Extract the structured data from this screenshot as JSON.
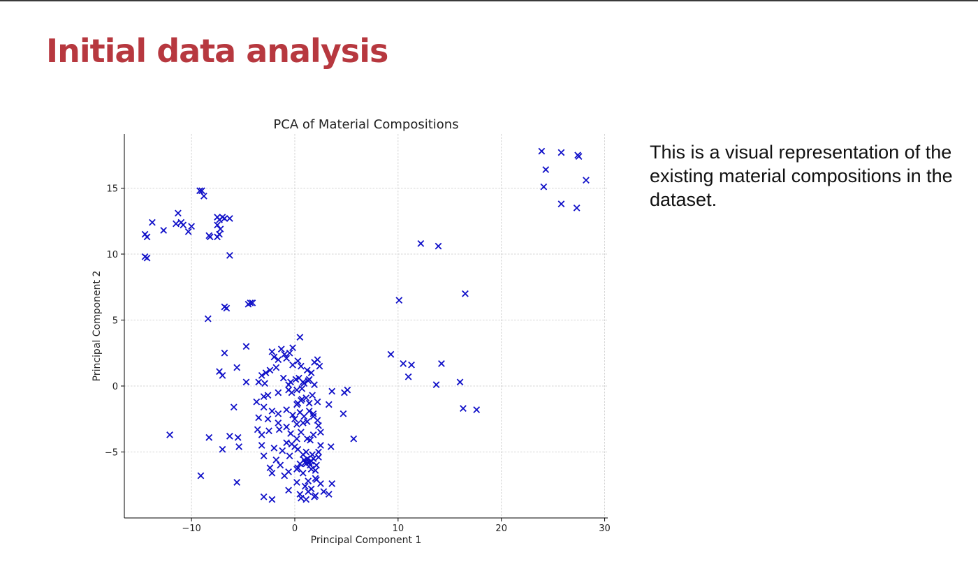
{
  "slide": {
    "title": "Initial data analysis",
    "description": "This is a visual representation of the existing material compositions in the dataset.",
    "title_color": "#b7383f"
  },
  "chart_data": {
    "type": "scatter",
    "title": "PCA of Material Compositions",
    "xlabel": "Principal Component 1",
    "ylabel": "Principal Component 2",
    "xlim": [
      -16.5,
      30.3
    ],
    "ylim": [
      -10.0,
      19.1
    ],
    "xticks": [
      -10,
      0,
      10,
      20,
      30
    ],
    "yticks": [
      -5,
      0,
      5,
      10,
      15
    ],
    "xtick_labels": [
      "−10",
      "0",
      "10",
      "20",
      "30"
    ],
    "ytick_labels": [
      "−5",
      "0",
      "5",
      "10",
      "15"
    ],
    "grid": true,
    "marker": "x",
    "color": "#1010c8",
    "series": [
      {
        "x": [
          -9.2,
          -9.0,
          -8.8,
          -11.3,
          -11.0,
          -10.8,
          -10.3,
          -10.0,
          -11.5,
          -12.7,
          -13.8,
          -14.3,
          -14.5,
          -14.5,
          -14.3,
          -7.5,
          -7.3,
          -7.0,
          -6.8,
          -6.3,
          -7.5,
          -7.2,
          -8.3,
          -8.2,
          -7.5,
          -7.3,
          -6.3,
          -6.8,
          -6.6,
          -4.5,
          -4.3,
          -4.1,
          -8.4,
          23.9,
          25.8,
          27.4,
          27.5,
          24.3,
          24.1,
          28.2,
          25.8,
          27.3,
          12.2,
          13.9,
          16.5,
          10.1,
          9.3,
          10.5,
          11.3,
          11.0,
          14.2,
          13.7,
          16.0,
          16.3,
          17.6,
          5.1,
          4.8,
          3.6,
          3.3,
          4.7,
          5.7,
          3.6,
          -6.8,
          -4.7,
          -5.6,
          -4.7,
          -7.3,
          -7.0,
          -5.9,
          -12.1,
          -8.3,
          -6.3,
          -7.0,
          -5.5,
          -5.4,
          -9.1,
          -5.6,
          0.5,
          -1.3,
          -2.2,
          -2.0,
          -1.6,
          -1.0,
          -0.5,
          -0.2,
          -0.8,
          -1.8,
          -2.4,
          -2.8,
          -3.2,
          -3.5,
          -2.9,
          -0.6,
          -1.1,
          -0.2,
          0.3,
          0.6,
          1.2,
          1.6,
          1.9,
          2.4,
          2.2,
          1.4,
          0.9,
          -0.6,
          -1.6,
          -2.6,
          -3.0,
          -3.7,
          -3.0,
          -2.2,
          -1.6,
          -0.8,
          0.2,
          0.7,
          1.4,
          2.2,
          -3.5,
          -2.6,
          -1.6,
          -0.8,
          0.0,
          0.8,
          1.8,
          2.3,
          -3.6,
          -3.2,
          -2.5,
          -1.5,
          -0.4,
          0.2,
          0.6,
          1.2,
          1.8,
          2.5,
          -3.2,
          -2.0,
          -1.2,
          -0.3,
          0.3,
          0.8,
          1.2,
          1.7,
          2.3,
          -3.0,
          -1.8,
          -0.5,
          0.5,
          1.6,
          -2.4,
          -1.4,
          -0.6,
          0.3,
          1.0,
          1.6,
          2.1,
          -2.2,
          -1.0,
          0.2,
          0.8,
          1.3,
          2.0,
          2.5,
          0.2,
          1.0,
          1.6,
          2.1,
          -0.6,
          0.5,
          1.3,
          2.0,
          -3.0,
          -2.2,
          0.6,
          1.1,
          1.9,
          2.8,
          3.3,
          1.4,
          0.9,
          1.5,
          1.8,
          2.3,
          1.1,
          1.6,
          -0.8,
          0.0,
          1.5,
          2.5,
          3.5,
          0.2,
          1.2,
          2.2,
          -0.2,
          0.5,
          0.9,
          1.4,
          1.8,
          0.3,
          0.6,
          1.1,
          1.7,
          -0.3,
          0.2,
          0.7,
          -0.4,
          0.1,
          0.4,
          0.8,
          1.3,
          1.9,
          2.0,
          1.1
        ],
        "y": [
          14.8,
          14.8,
          14.4,
          13.1,
          12.4,
          12.2,
          11.7,
          12.1,
          12.3,
          11.8,
          12.4,
          11.3,
          11.5,
          9.8,
          9.7,
          12.8,
          12.6,
          12.8,
          12.7,
          12.7,
          12.2,
          11.9,
          11.4,
          11.3,
          11.3,
          11.5,
          9.9,
          6.0,
          5.9,
          6.2,
          6.3,
          6.3,
          5.1,
          17.8,
          17.7,
          17.5,
          17.4,
          16.4,
          15.1,
          15.6,
          13.8,
          13.5,
          10.8,
          10.6,
          7.0,
          6.5,
          2.4,
          1.7,
          1.6,
          0.7,
          1.7,
          0.1,
          0.3,
          -1.7,
          -1.8,
          -0.3,
          -0.5,
          -0.4,
          -1.4,
          -2.1,
          -4.0,
          -7.4,
          2.5,
          3.0,
          1.4,
          0.3,
          1.1,
          0.8,
          -1.6,
          -3.7,
          -3.9,
          -3.8,
          -4.8,
          -3.9,
          -4.6,
          -6.8,
          -7.3,
          3.7,
          2.8,
          2.6,
          2.2,
          2.0,
          2.4,
          2.5,
          2.9,
          2.1,
          1.4,
          1.2,
          1.0,
          0.8,
          0.3,
          0.2,
          0.1,
          0.6,
          1.6,
          1.9,
          1.5,
          1.2,
          1.0,
          1.8,
          1.5,
          2.0,
          0.5,
          0.2,
          -0.3,
          -0.5,
          -0.7,
          -0.8,
          -1.2,
          -1.6,
          -1.9,
          -2.1,
          -1.8,
          -1.4,
          -1.0,
          -1.3,
          -1.2,
          -2.4,
          -2.5,
          -2.8,
          -3.1,
          -2.5,
          -2.8,
          -2.3,
          -3.0,
          -3.3,
          -3.7,
          -3.4,
          -3.3,
          -3.6,
          -4.0,
          -3.5,
          -4.0,
          -3.7,
          -3.5,
          -4.5,
          -4.7,
          -4.9,
          -4.4,
          -4.8,
          -5.2,
          -5.5,
          -5.2,
          -5.0,
          -5.3,
          -5.6,
          -5.3,
          -5.9,
          -5.7,
          -6.2,
          -6.0,
          -6.5,
          -6.2,
          -5.8,
          -6.3,
          -6.0,
          -6.6,
          -6.8,
          -6.3,
          -6.6,
          -7.2,
          -7.0,
          -7.4,
          -7.3,
          -7.6,
          -7.8,
          -7.1,
          -7.9,
          -8.2,
          -8.0,
          -8.3,
          -8.4,
          -8.6,
          -8.5,
          -8.6,
          -8.4,
          -8.0,
          -8.2,
          -5.8,
          -5.6,
          -6.0,
          -5.5,
          -5.4,
          -5.9,
          -5.7,
          -4.3,
          -4.6,
          -4.1,
          -4.5,
          -4.6,
          -2.9,
          -2.7,
          -2.6,
          -2.2,
          -2.0,
          -2.3,
          -1.9,
          -2.1,
          -1.3,
          -1.1,
          -0.9,
          -0.7,
          -0.5,
          -0.3,
          -0.2,
          0.3,
          0.5,
          0.6,
          0.3,
          0.4,
          0.1,
          -6.4,
          -5.0
        ]
      }
    ]
  }
}
